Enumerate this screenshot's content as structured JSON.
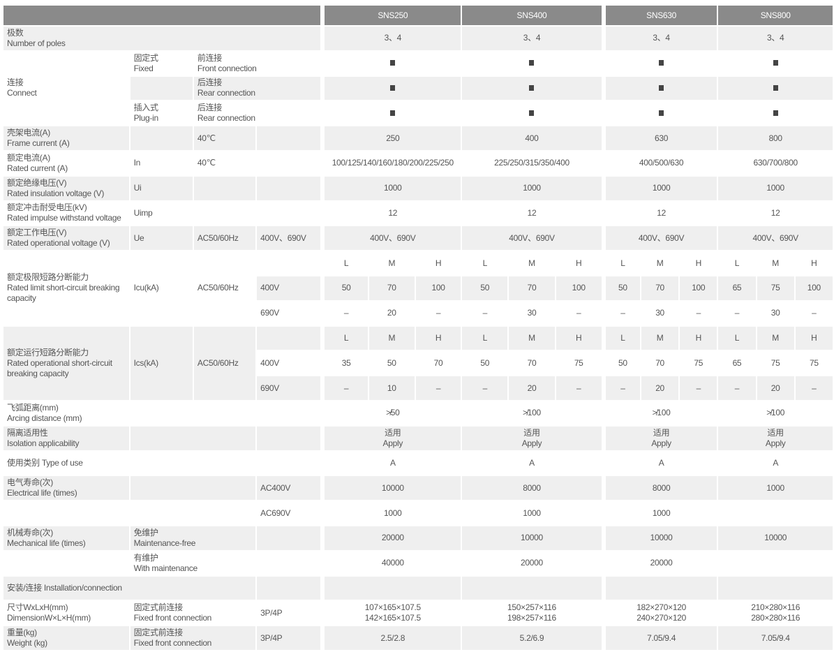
{
  "models": [
    "SNS250",
    "SNS400",
    "SNS630",
    "SNS800"
  ],
  "lmh": [
    "L",
    "M",
    "H"
  ],
  "mark_icon": "filled-square",
  "colors": {
    "header_bg": "#8a8a8a",
    "row_gray": "#efefef",
    "text": "#555555"
  },
  "rows": {
    "poles": {
      "label": {
        "zh": "极数",
        "en": "Number of poles"
      },
      "values": [
        "3、4",
        "3、4",
        "3、4",
        "3、4"
      ]
    },
    "connect": {
      "label": {
        "zh": "连接",
        "en": "Connect"
      },
      "fixed": {
        "zh": "固定式",
        "en": "Fixed"
      },
      "front": {
        "zh": "前连接",
        "en": "Front connection"
      },
      "rear": {
        "zh": "后连接",
        "en": "Rear connection"
      },
      "plugin": {
        "zh": "插入式",
        "en": "Plug-in"
      },
      "rear2": {
        "zh": "后连接",
        "en": "Rear connection"
      }
    },
    "frame": {
      "label": {
        "zh": "壳架电流(A)",
        "en": "Frame current (A)"
      },
      "temp": "40℃",
      "values": [
        "250",
        "400",
        "630",
        "800"
      ]
    },
    "current": {
      "label": {
        "zh": "额定电流(A)",
        "en": "Rated current (A)"
      },
      "sym": "In",
      "temp": "40℃",
      "values": [
        "100/125/140/160/180/200/225/250",
        "225/250/315/350/400",
        "400/500/630",
        "630/700/800"
      ]
    },
    "insulation": {
      "label": {
        "zh": "额定绝缘电压(V)",
        "en": "Rated insulation voltage (V)"
      },
      "sym": "Ui",
      "values": [
        "1000",
        "1000",
        "1000",
        "1000"
      ]
    },
    "impulse": {
      "label": {
        "zh": "额定冲击耐受电压(kV)",
        "en": "Rated impulse withstand voltage"
      },
      "sym": "Uimp",
      "values": [
        "12",
        "12",
        "12",
        "12"
      ]
    },
    "operational": {
      "label": {
        "zh": "额定工作电压(V)",
        "en": "Rated operational voltage (V)"
      },
      "sym": "Ue",
      "freq": "AC50/60Hz",
      "volt": "400V、690V",
      "values": [
        "400V、690V",
        "400V、690V",
        "400V、690V",
        "400V、690V"
      ]
    },
    "icu": {
      "label": {
        "zh": "额定极限短路分断能力",
        "en": "Rated limit short-circuit breaking",
        "en2": "capacity"
      },
      "sym": "Icu(kA)",
      "freq": "AC50/60Hz",
      "v1": "400V",
      "v2": "690V",
      "v400": [
        [
          "50",
          "70",
          "100"
        ],
        [
          "50",
          "70",
          "100"
        ],
        [
          "50",
          "70",
          "100"
        ],
        [
          "65",
          "75",
          "100"
        ]
      ],
      "v690": [
        [
          "–",
          "20",
          "–"
        ],
        [
          "–",
          "30",
          "–"
        ],
        [
          "–",
          "30",
          "–"
        ],
        [
          "–",
          "30",
          "–"
        ]
      ]
    },
    "ics": {
      "label": {
        "zh": "额定运行短路分断能力",
        "en": "Rated operational short-circuit",
        "en2": "breaking capacity"
      },
      "sym": "Ics(kA)",
      "freq": "AC50/60Hz",
      "v1": "400V",
      "v2": "690V",
      "v400": [
        [
          "35",
          "50",
          "70"
        ],
        [
          "50",
          "70",
          "75"
        ],
        [
          "50",
          "70",
          "75"
        ],
        [
          "65",
          "75",
          "75"
        ]
      ],
      "v690": [
        [
          "–",
          "10",
          "–"
        ],
        [
          "–",
          "20",
          "–"
        ],
        [
          "–",
          "20",
          "–"
        ],
        [
          "–",
          "20",
          "–"
        ]
      ]
    },
    "arcing": {
      "label": {
        "zh": "飞弧距离(mm)",
        "en": "Arcing distance (mm)"
      },
      "values": [
        "≯50",
        "≯100",
        "≯100",
        "≯100"
      ]
    },
    "isolation": {
      "label": {
        "zh": "隔离适用性",
        "en": "Isolation applicability"
      },
      "values": [
        {
          "zh": "适用",
          "en": "Apply"
        },
        {
          "zh": "适用",
          "en": "Apply"
        },
        {
          "zh": "适用",
          "en": "Apply"
        },
        {
          "zh": "适用",
          "en": "Apply"
        }
      ]
    },
    "type": {
      "label": "使用类别  Type of use",
      "values": [
        "A",
        "A",
        "A",
        "A"
      ]
    },
    "electrical": {
      "label": {
        "zh": "电气寿命(次)",
        "en": "Electrical life (times)"
      },
      "ac400": "AC400V",
      "ac690": "AC690V",
      "values400": [
        "10000",
        "8000",
        "8000",
        "1000"
      ],
      "values690": [
        "1000",
        "1000",
        "1000",
        ""
      ]
    },
    "mechanical": {
      "label": {
        "zh": "机械寿命(次)",
        "en": "Mechanical life (times)"
      },
      "free": {
        "zh": "免维护",
        "en": "Maintenance-free"
      },
      "with": {
        "zh": "有维护",
        "en": "With maintenance"
      },
      "values_free": [
        "20000",
        "10000",
        "10000",
        "10000"
      ],
      "values_with": [
        "40000",
        "20000",
        "20000",
        ""
      ]
    },
    "install": {
      "label": "安装/连接  Installation/connection"
    },
    "dimension": {
      "label": {
        "zh": "尺寸WxLxH(mm)",
        "en": "DimensionW×L×H(mm)"
      },
      "mode": {
        "zh": "固定式前连接",
        "en": "Fixed front connection"
      },
      "poles": "3P/4P",
      "values": [
        {
          "zh": "107×165×107.5",
          "en": "142×165×107.5"
        },
        {
          "zh": "150×257×116",
          "en": "198×257×116"
        },
        {
          "zh": "182×270×120",
          "en": "240×270×120"
        },
        {
          "zh": "210×280×116",
          "en": "280×280×116"
        }
      ]
    },
    "weight": {
      "label": {
        "zh": "重量(kg)",
        "en": "Weight (kg)"
      },
      "mode": {
        "zh": "固定式前连接",
        "en": "Fixed front connection"
      },
      "poles": "3P/4P",
      "values": [
        "2.5/2.8",
        "5.2/6.9",
        "7.05/9.4",
        "7.05/9.4"
      ]
    }
  }
}
